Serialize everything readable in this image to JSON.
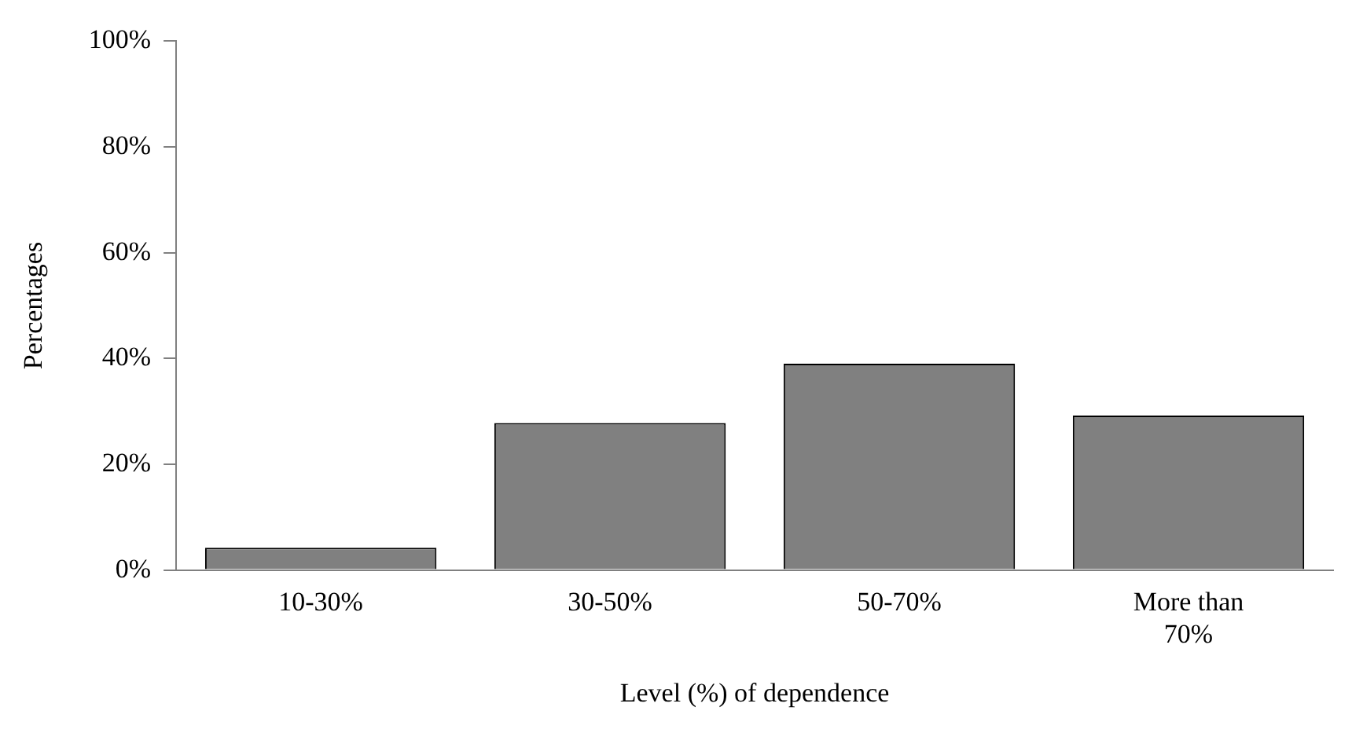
{
  "chart_data": {
    "type": "bar",
    "xlabel": "Level (%) of dependence",
    "ylabel": "Percentages",
    "categories": [
      "10-30%",
      "30-50%",
      "50-70%",
      "More than 70%"
    ],
    "values": [
      4.2,
      27.8,
      39.0,
      29.2
    ],
    "color": "#808080",
    "ylim": [
      0,
      100
    ],
    "yticks": [
      {
        "value": 0,
        "label": "0%"
      },
      {
        "value": 20,
        "label": "20%"
      },
      {
        "value": 40,
        "label": "40%"
      },
      {
        "value": 60,
        "label": "60%"
      },
      {
        "value": 80,
        "label": "80%"
      },
      {
        "value": 100,
        "label": "100%"
      }
    ],
    "grid": false,
    "legend": false
  }
}
